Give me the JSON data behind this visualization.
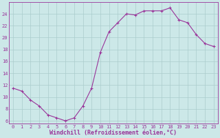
{
  "x": [
    0,
    1,
    2,
    3,
    4,
    5,
    6,
    7,
    8,
    9,
    10,
    11,
    12,
    13,
    14,
    15,
    16,
    17,
    18,
    19,
    20,
    21,
    22,
    23
  ],
  "y": [
    11.5,
    11.0,
    9.5,
    8.5,
    7.0,
    6.5,
    6.0,
    6.5,
    8.5,
    11.5,
    17.5,
    21.0,
    22.5,
    24.0,
    23.8,
    24.5,
    24.5,
    24.5,
    25.0,
    23.0,
    22.5,
    20.5,
    19.0,
    18.5
  ],
  "line_color": "#993399",
  "marker": "+",
  "background_color": "#cce8e8",
  "grid_color": "#aacccc",
  "xlabel": "Windchill (Refroidissement éolien,°C)",
  "ylabel": "",
  "xlim": [
    -0.5,
    23.5
  ],
  "ylim": [
    5.5,
    26
  ],
  "yticks": [
    6,
    8,
    10,
    12,
    14,
    16,
    18,
    20,
    22,
    24
  ],
  "xticks": [
    0,
    1,
    2,
    3,
    4,
    5,
    6,
    7,
    8,
    9,
    10,
    11,
    12,
    13,
    14,
    15,
    16,
    17,
    18,
    19,
    20,
    21,
    22,
    23
  ],
  "tick_label_fontsize": 5.0,
  "xlabel_fontsize": 6.0,
  "tick_color": "#993399",
  "label_color": "#993399",
  "spine_color": "#993399"
}
